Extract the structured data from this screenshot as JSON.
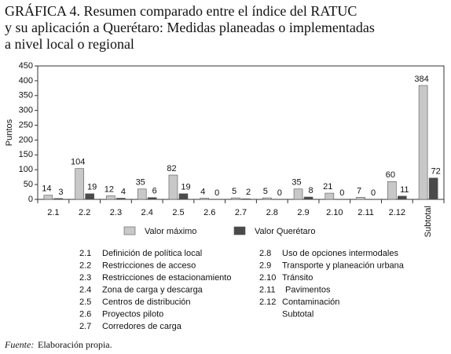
{
  "chart_data": {
    "type": "bar",
    "title": [
      "GRÁFICA 4. Resumen comparado entre el índice del RATUC",
      "y su aplicación a Querétaro: Medidas planeadas o implementadas",
      "a nivel local o regional"
    ],
    "ylabel": "Puntos",
    "categories": [
      "2.1",
      "2.2",
      "2.3",
      "2.4",
      "2.5",
      "2.6",
      "2.7",
      "2.8",
      "2.9",
      "2.10",
      "2.11",
      "2.12",
      "Subtotal"
    ],
    "series": [
      {
        "name": "Valor máximo",
        "color": "#c8c8c8",
        "values": [
          14,
          104,
          12,
          35,
          82,
          4,
          5,
          5,
          35,
          21,
          7,
          60,
          384
        ]
      },
      {
        "name": "Valor Querétaro",
        "color": "#4a4a4a",
        "values": [
          3,
          19,
          4,
          6,
          19,
          0,
          2,
          0,
          8,
          0,
          0,
          11,
          72
        ]
      }
    ],
    "ylim": [
      0,
      450
    ],
    "yticks": [
      0,
      50,
      100,
      150,
      200,
      250,
      300,
      350,
      400,
      450
    ],
    "grid": false,
    "key": [
      {
        "code": "2.1",
        "label": "Definición de política local"
      },
      {
        "code": "2.2",
        "label": "Restricciones de acceso"
      },
      {
        "code": "2.3",
        "label": "Restricciones de estacionamiento"
      },
      {
        "code": "2.4",
        "label": "Zona de carga y descarga"
      },
      {
        "code": "2.5",
        "label": "Centros de distribución"
      },
      {
        "code": "2.6",
        "label": "Proyectos piloto"
      },
      {
        "code": "2.7",
        "label": "Corredores de carga"
      },
      {
        "code": "2.8",
        "label": "Uso de opciones intermodales"
      },
      {
        "code": "2.9",
        "label": "Transporte y planeación urbana"
      },
      {
        "code": "2.10",
        "label": "Tránsito"
      },
      {
        "code": "2.11",
        "label": "Pavimentos"
      },
      {
        "code": "2.12",
        "label": "Contaminación"
      },
      {
        "code": null,
        "label": "Subtotal"
      }
    ],
    "source_label": "Fuente:",
    "source_text": "Elaboración propia."
  }
}
